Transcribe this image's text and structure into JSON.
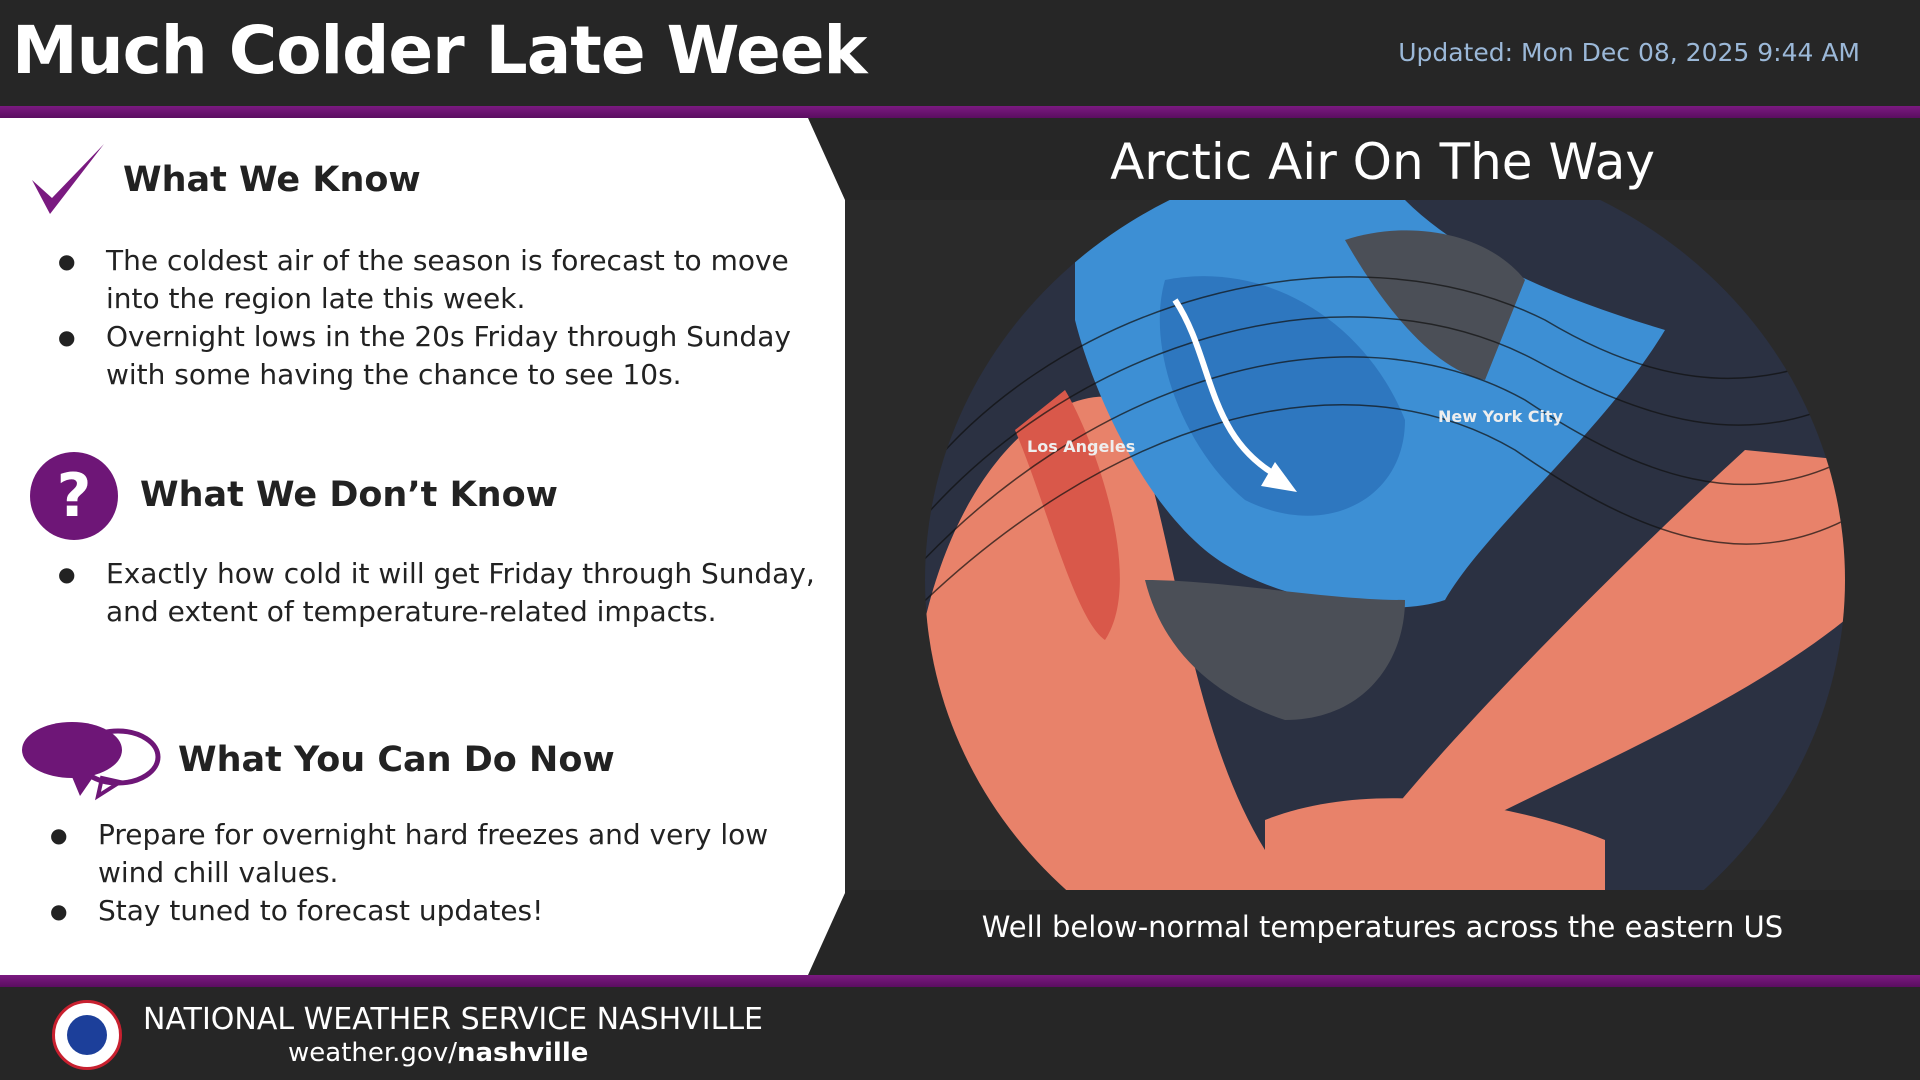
{
  "header": {
    "title": "Much Colder Late Week",
    "updated": "Updated: Mon Dec 08, 2025 9:44 AM"
  },
  "know": {
    "heading": "What We Know",
    "bullets": [
      "The coldest air of the season is forecast to move into the region late this week.",
      "Overnight lows in the 20s Friday through Sunday with some having the chance to see 10s."
    ]
  },
  "dont_know": {
    "heading": "What We Don’t Know",
    "icon_text": "?",
    "bullets": [
      "Exactly how cold it will get Friday through Sunday, and extent of temperature-related impacts."
    ]
  },
  "can_do": {
    "heading": "What You Can Do Now",
    "bullets": [
      "Prepare for overnight hard freezes and very low wind chill values.",
      "Stay tuned to forecast updates!"
    ]
  },
  "graphic": {
    "title": "Arctic Air On The Way",
    "caption": "Well below-normal temperatures across the eastern US",
    "labels": {
      "la": "Los Angeles",
      "nyc": "New York City"
    }
  },
  "footer": {
    "org": "NATIONAL WEATHER SERVICE NASHVILLE",
    "url_prefix": "weather.gov/",
    "url_bold": "nashville",
    "logo_text": "NATIONAL WEATHER SERVICE"
  },
  "colors": {
    "purple": "#6e1677",
    "cold": "#3d8fd4",
    "warm": "#e8826a",
    "background": "#262626"
  }
}
